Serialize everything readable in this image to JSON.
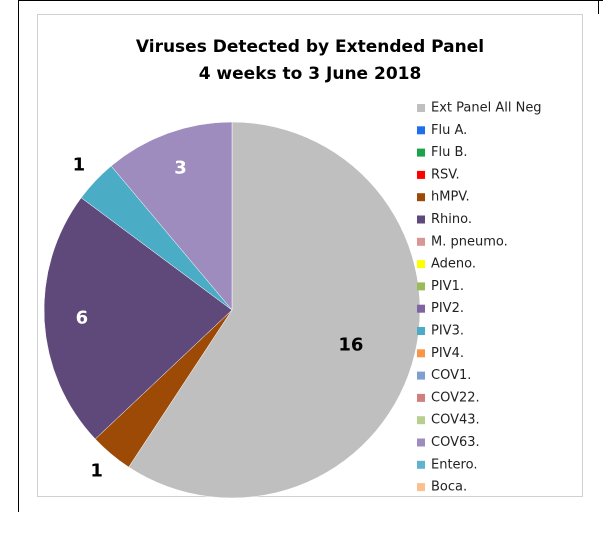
{
  "chart_data": {
    "type": "pie",
    "title": "Viruses Detected by Extended Panel",
    "subtitle": "4 weeks to 3 June 2018",
    "categories": [
      "Ext Panel All Neg",
      "Flu A.",
      "Flu B.",
      "RSV.",
      "hMPV.",
      "Rhino.",
      "M. pneumo.",
      "Adeno.",
      "PIV1.",
      "PIV2.",
      "PIV3.",
      "PIV4.",
      "COV1.",
      "COV22.",
      "COV43.",
      "COV63.",
      "Entero.",
      "Boca."
    ],
    "values": [
      16,
      0,
      0,
      0,
      1,
      6,
      0,
      0,
      0,
      0,
      1,
      0,
      0,
      0,
      0,
      3,
      0,
      0
    ],
    "colors": [
      "#bfbfbf",
      "#1f6feb",
      "#1aa34a",
      "#ff0000",
      "#9c4a06",
      "#5f497a",
      "#d99694",
      "#ffff00",
      "#9bbb59",
      "#8064a2",
      "#4bacc6",
      "#f79646",
      "#7f9fcf",
      "#d07f7f",
      "#b8d08f",
      "#9e8cbf",
      "#5fb3cf",
      "#fac090"
    ],
    "legend": "right"
  }
}
